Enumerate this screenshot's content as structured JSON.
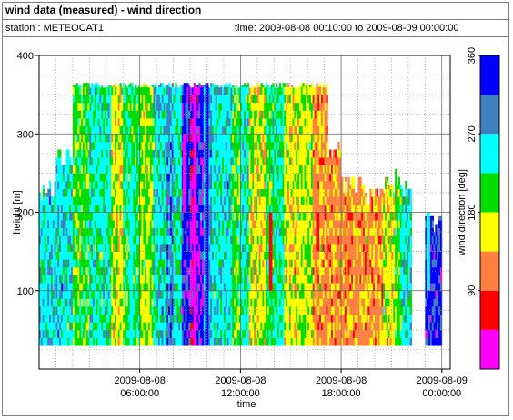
{
  "header": {
    "title": "wind data (measured) - wind direction",
    "station": "station : METEOCAT1",
    "time_range": "time: 2009-08-08 00:10:00 to 2009-08-09 00:00:00"
  },
  "chart_data": {
    "type": "heatmap",
    "ylabel": "height [m]",
    "xlabel": "time",
    "colorbar_label": "wind direction [deg]",
    "ylim": [
      0,
      400
    ],
    "xlim_hours": [
      0,
      24.5
    ],
    "y_ticks": [
      {
        "value": 100,
        "label": "100"
      },
      {
        "value": 200,
        "label": "200"
      },
      {
        "value": 300,
        "label": "300"
      },
      {
        "value": 400,
        "label": "400"
      }
    ],
    "x_ticks": [
      {
        "hours": 6,
        "line1": "2009-08-08",
        "line2": "06:00:00"
      },
      {
        "hours": 12,
        "line1": "2009-08-08",
        "line2": "12:00:00"
      },
      {
        "hours": 18,
        "line1": "2009-08-08",
        "line2": "18:00:00"
      },
      {
        "hours": 24,
        "line1": "2009-08-09",
        "line2": "00:00:00"
      }
    ],
    "grid": true,
    "colorbar": {
      "min": 0,
      "max": 360,
      "ticks": [
        {
          "value": 90,
          "label": "90"
        },
        {
          "value": 180,
          "label": "180"
        },
        {
          "value": 270,
          "label": "270"
        },
        {
          "value": 360,
          "label": "360"
        }
      ],
      "bins": [
        {
          "from": 0,
          "to": 45,
          "color": "#ff00ff"
        },
        {
          "from": 45,
          "to": 90,
          "color": "#ff0000"
        },
        {
          "from": 90,
          "to": 135,
          "color": "#ff8040"
        },
        {
          "from": 135,
          "to": 180,
          "color": "#ffff00"
        },
        {
          "from": 180,
          "to": 225,
          "color": "#00dd00"
        },
        {
          "from": 225,
          "to": 270,
          "color": "#00ffff"
        },
        {
          "from": 270,
          "to": 315,
          "color": "#4080c0"
        },
        {
          "from": 315,
          "to": 360,
          "color": "#0000ff"
        }
      ]
    },
    "height_range_m": [
      30,
      365
    ],
    "segments": [
      {
        "t0": 0.0,
        "t1": 0.5,
        "h_top": 235,
        "dir": 250
      },
      {
        "t0": 0.5,
        "t1": 1.0,
        "h_top": 240,
        "dir": 255
      },
      {
        "t0": 1.0,
        "t1": 2.0,
        "h_top": 280,
        "dir": 250
      },
      {
        "t0": 2.0,
        "t1": 3.0,
        "h_top": 365,
        "dir": 200
      },
      {
        "t0": 3.0,
        "t1": 4.3,
        "h_top": 365,
        "dir": 240
      },
      {
        "t0": 4.3,
        "t1": 5.0,
        "h_top": 365,
        "dir": 160
      },
      {
        "t0": 5.0,
        "t1": 6.0,
        "h_top": 365,
        "dir": 210
      },
      {
        "t0": 6.0,
        "t1": 6.8,
        "h_top": 365,
        "dir": 180
      },
      {
        "t0": 6.8,
        "t1": 7.6,
        "h_top": 365,
        "dir": 250
      },
      {
        "t0": 7.6,
        "t1": 8.0,
        "h_top": 365,
        "dir": 290
      },
      {
        "t0": 8.0,
        "t1": 8.5,
        "h_top": 365,
        "dir": 240
      },
      {
        "t0": 8.5,
        "t1": 9.0,
        "h_top": 365,
        "dir": 330
      },
      {
        "t0": 9.0,
        "t1": 9.4,
        "h_top": 365,
        "dir": 20
      },
      {
        "t0": 9.4,
        "t1": 9.8,
        "h_top": 365,
        "dir": 340
      },
      {
        "t0": 9.8,
        "t1": 10.3,
        "h_top": 365,
        "dir": 280
      },
      {
        "t0": 10.3,
        "t1": 11.5,
        "h_top": 365,
        "dir": 250
      },
      {
        "t0": 11.5,
        "t1": 12.0,
        "h_top": 365,
        "dir": 200
      },
      {
        "t0": 12.0,
        "t1": 12.5,
        "h_top": 365,
        "dir": 240
      },
      {
        "t0": 12.5,
        "t1": 13.5,
        "h_top": 365,
        "dir": 160
      },
      {
        "t0": 13.5,
        "t1": 14.0,
        "h_top": 365,
        "dir": 210
      },
      {
        "t0": 14.0,
        "t1": 14.6,
        "h_top": 365,
        "dir": 230
      },
      {
        "t0": 14.6,
        "t1": 15.5,
        "h_top": 365,
        "dir": 160
      },
      {
        "t0": 15.5,
        "t1": 16.3,
        "h_top": 365,
        "dir": 170
      },
      {
        "t0": 16.3,
        "t1": 17.2,
        "h_top": 365,
        "dir": 120
      },
      {
        "t0": 17.2,
        "t1": 18.0,
        "h_top": 290,
        "dir": 120
      },
      {
        "t0": 18.0,
        "t1": 19.5,
        "h_top": 245,
        "dir": 120
      },
      {
        "t0": 19.5,
        "t1": 20.5,
        "h_top": 230,
        "dir": 120
      },
      {
        "t0": 20.5,
        "t1": 21.2,
        "h_top": 245,
        "dir": 160
      },
      {
        "t0": 21.2,
        "t1": 21.6,
        "h_top": 255,
        "dir": 200
      },
      {
        "t0": 21.6,
        "t1": 22.2,
        "h_top": 240,
        "dir": 250
      },
      {
        "t0": 23.0,
        "t1": 24.0,
        "h_top": 195,
        "dir": 330
      }
    ],
    "accents": [
      {
        "t0": 9.9,
        "t1": 10.1,
        "h0": 30,
        "h1": 365,
        "dir": 340
      },
      {
        "t0": 8.55,
        "t1": 8.75,
        "h0": 200,
        "h1": 300,
        "dir": 20
      },
      {
        "t0": 13.7,
        "t1": 13.9,
        "h0": 100,
        "h1": 200,
        "dir": 60
      },
      {
        "t0": 16.5,
        "t1": 16.7,
        "h0": 150,
        "h1": 200,
        "dir": 60
      },
      {
        "t0": 12.6,
        "t1": 12.8,
        "h0": 250,
        "h1": 300,
        "dir": 200
      },
      {
        "t0": 5.4,
        "t1": 5.6,
        "h0": 30,
        "h1": 250,
        "dir": 230
      },
      {
        "t0": 21.3,
        "t1": 21.5,
        "h0": 30,
        "h1": 80,
        "dir": 180
      },
      {
        "t0": 23.1,
        "t1": 23.3,
        "h0": 100,
        "h1": 200,
        "dir": 260
      },
      {
        "t0": 9.2,
        "t1": 9.35,
        "h0": 30,
        "h1": 365,
        "dir": 20
      }
    ]
  }
}
